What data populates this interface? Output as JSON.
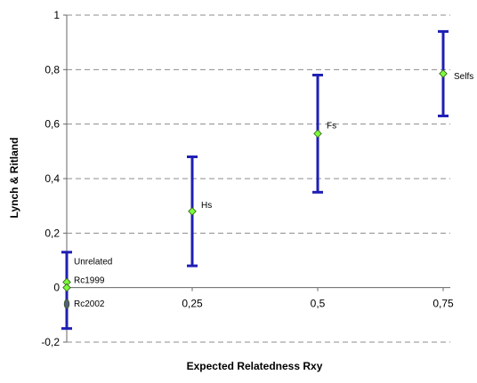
{
  "chart_data": {
    "type": "scatter",
    "title": "",
    "xlabel": "Expected Relatedness Rxy",
    "ylabel": "Lynch & Ritland",
    "xlim": [
      0,
      0.75
    ],
    "ylim": [
      -0.2,
      1
    ],
    "x_ticks": [
      {
        "value": 0.25,
        "label": "0,25"
      },
      {
        "value": 0.5,
        "label": "0,5"
      },
      {
        "value": 0.75,
        "label": "0,75"
      }
    ],
    "y_ticks": [
      {
        "value": 1,
        "label": "1"
      },
      {
        "value": 0.8,
        "label": "0,8"
      },
      {
        "value": 0.6,
        "label": "0,6"
      },
      {
        "value": 0.4,
        "label": "0,4"
      },
      {
        "value": 0.2,
        "label": "0,2"
      },
      {
        "value": 0,
        "label": "0"
      },
      {
        "value": -0.2,
        "label": "-0,2"
      }
    ],
    "grid": {
      "horizontal": true,
      "style": "dashed"
    },
    "points": [
      {
        "label": "Unrelated",
        "x": 0,
        "y": 0.02,
        "low": -0.15,
        "high": 0.13,
        "marker": "diamond",
        "error_bar": true
      },
      {
        "label": "Rc1999",
        "x": 0,
        "y": 0.0,
        "marker": "diamond",
        "error_bar": false
      },
      {
        "label": "Rc2002",
        "x": 0,
        "y": -0.06,
        "marker": "circle",
        "error_bar": false
      },
      {
        "label": "Hs",
        "x": 0.25,
        "y": 0.28,
        "low": 0.08,
        "high": 0.48,
        "marker": "diamond",
        "error_bar": true
      },
      {
        "label": "Fs",
        "x": 0.5,
        "y": 0.565,
        "low": 0.35,
        "high": 0.78,
        "marker": "diamond",
        "error_bar": true
      },
      {
        "label": "Selfs",
        "x": 0.75,
        "y": 0.785,
        "low": 0.63,
        "high": 0.94,
        "marker": "diamond",
        "error_bar": true
      }
    ],
    "colors": {
      "error_bar": "#1f1fb4",
      "marker_fill": "#7cfc3c",
      "marker_stroke": "#2d5b14",
      "circle_fill": "#5a5a8a",
      "grid": "#8c8c8c",
      "axis": "#666666"
    }
  }
}
